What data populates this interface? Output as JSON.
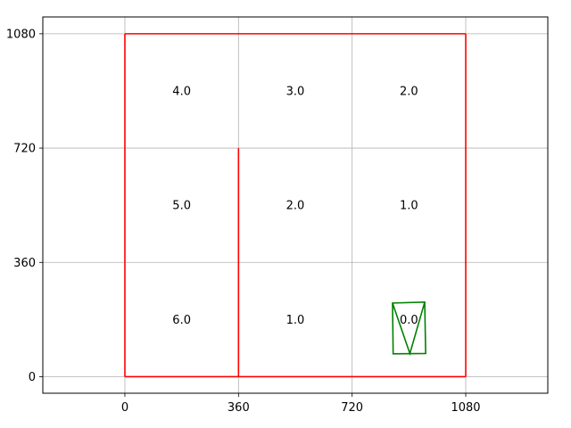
{
  "chart_data": {
    "type": "scatter",
    "title": "",
    "xlabel": "",
    "ylabel": "",
    "xlim": [
      -260,
      1340
    ],
    "ylim": [
      -52,
      1133
    ],
    "xticks": [
      {
        "value": 0,
        "label": "0"
      },
      {
        "value": 360,
        "label": "360"
      },
      {
        "value": 720,
        "label": "720"
      },
      {
        "value": 1080,
        "label": "1080"
      }
    ],
    "yticks": [
      {
        "value": 0,
        "label": "0"
      },
      {
        "value": 360,
        "label": "360"
      },
      {
        "value": 720,
        "label": "720"
      },
      {
        "value": 1080,
        "label": "1080"
      }
    ],
    "grid": true,
    "grid_color": "#b0b0b0",
    "walls": {
      "color": "#ff0000",
      "segments": [
        {
          "x": [
            0,
            0
          ],
          "y": [
            0,
            1080
          ]
        },
        {
          "x": [
            0,
            1080
          ],
          "y": [
            1080,
            1080
          ]
        },
        {
          "x": [
            1080,
            1080
          ],
          "y": [
            1080,
            0
          ]
        },
        {
          "x": [
            0,
            1080
          ],
          "y": [
            0,
            0
          ]
        },
        {
          "x": [
            360,
            360
          ],
          "y": [
            0,
            720
          ]
        }
      ]
    },
    "cell_values": [
      {
        "x": 180,
        "y": 180,
        "label": "6.0"
      },
      {
        "x": 540,
        "y": 180,
        "label": "1.0"
      },
      {
        "x": 900,
        "y": 180,
        "label": "0.0"
      },
      {
        "x": 180,
        "y": 540,
        "label": "5.0"
      },
      {
        "x": 540,
        "y": 540,
        "label": "2.0"
      },
      {
        "x": 900,
        "y": 540,
        "label": "1.0"
      },
      {
        "x": 180,
        "y": 900,
        "label": "4.0"
      },
      {
        "x": 540,
        "y": 900,
        "label": "3.0"
      },
      {
        "x": 900,
        "y": 900,
        "label": "2.0"
      }
    ],
    "agent": {
      "color": "#008000",
      "outline": [
        [
          848,
          232
        ],
        [
          950,
          235
        ],
        [
          953,
          73
        ],
        [
          850,
          72
        ]
      ],
      "heading": [
        [
          848,
          232
        ],
        [
          903,
          73
        ],
        [
          950,
          235
        ]
      ]
    }
  }
}
